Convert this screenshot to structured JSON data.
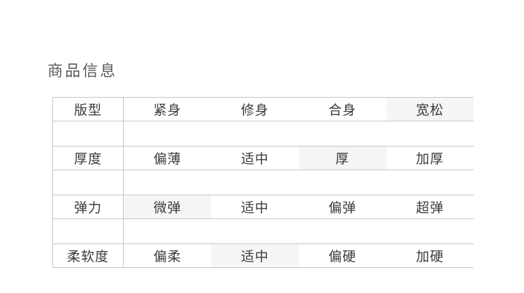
{
  "page": {
    "title": "商品信息"
  },
  "colors": {
    "line": "#c6c6c6",
    "highlight": "#f5f5f5",
    "title_text": "#595959",
    "table_text": "#3a3a3a"
  },
  "table": {
    "rows": [
      {
        "label": "版型",
        "options": [
          "紧身",
          "修身",
          "合身",
          "宽松"
        ],
        "selected_index": 3,
        "selected_value": "宽松"
      },
      {
        "label": "厚度",
        "options": [
          "偏薄",
          "适中",
          "厚",
          "加厚"
        ],
        "selected_index": 2,
        "selected_value": "厚"
      },
      {
        "label": "弹力",
        "options": [
          "微弹",
          "适中",
          "偏弹",
          "超弹"
        ],
        "selected_index": 0,
        "selected_value": "微弹"
      },
      {
        "label": "柔软度",
        "options": [
          "偏柔",
          "适中",
          "偏硬",
          "加硬"
        ],
        "selected_index": 1,
        "selected_value": "适中"
      }
    ]
  }
}
